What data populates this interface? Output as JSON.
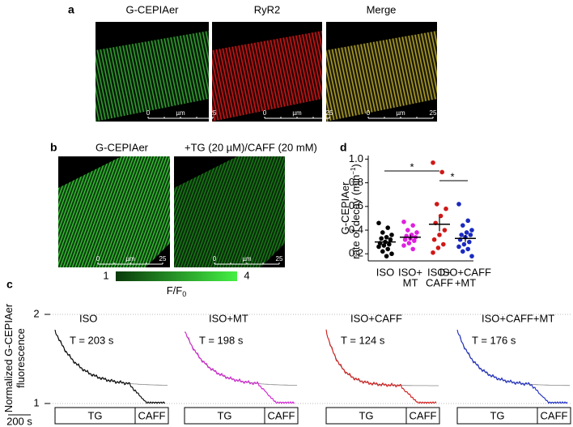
{
  "panel_a": {
    "letter": "a",
    "headers": [
      "G-CEPIAer",
      "RyR2",
      "Merge"
    ],
    "scale_bar": {
      "start": "0",
      "unit": "µm",
      "end": "25"
    }
  },
  "panel_b": {
    "letter": "b",
    "headers": [
      "G-CEPIAer",
      "+TG (20 µM)/CAFF (20 mM)"
    ],
    "scale_bar": {
      "start": "0",
      "unit": "µm",
      "end": "25"
    },
    "colorbar": {
      "min": 1,
      "max": 4,
      "label": "F/F",
      "label_sub": "0"
    }
  },
  "panel_d": {
    "letter": "d",
    "ylabel": [
      "G-CEPIAer",
      "rate of decay (min",
      "−1",
      ")"
    ],
    "ylim": [
      0.14,
      1.03
    ],
    "yticks": [
      {
        "value": 1,
        "label": "1.0"
      },
      0.8,
      0.6,
      0.4,
      0.2
    ],
    "significance": [
      "*",
      "*"
    ],
    "groups": [
      {
        "label": [
          "ISO"
        ],
        "color": "#000000",
        "values": [
          0.46,
          0.42,
          0.38,
          0.36,
          0.34,
          0.33,
          0.32,
          0.3,
          0.29,
          0.28,
          0.27,
          0.26,
          0.24,
          0.22,
          0.2,
          0.18
        ],
        "mean": 0.3,
        "sem": 0.02
      },
      {
        "label": [
          "ISO+",
          "MT"
        ],
        "color": "#e020e0",
        "values": [
          0.47,
          0.44,
          0.4,
          0.38,
          0.36,
          0.35,
          0.34,
          0.33,
          0.32,
          0.31,
          0.29,
          0.27,
          0.24
        ],
        "mean": 0.34,
        "sem": 0.02
      },
      {
        "label": [
          "ISO+",
          "CAFF"
        ],
        "color": "#d01818",
        "values": [
          0.97,
          0.89,
          0.62,
          0.58,
          0.52,
          0.46,
          0.4,
          0.36,
          0.32,
          0.28,
          0.25,
          0.21
        ],
        "mean": 0.45,
        "sem": 0.06
      },
      {
        "label": [
          "ISO+CAFF",
          "+MT"
        ],
        "color": "#1a2ac0",
        "values": [
          0.62,
          0.48,
          0.44,
          0.4,
          0.38,
          0.36,
          0.36,
          0.34,
          0.32,
          0.3,
          0.28,
          0.26,
          0.24,
          0.22,
          0.18
        ],
        "mean": 0.33,
        "sem": 0.03
      }
    ]
  },
  "panel_c": {
    "letter": "c",
    "ylabel": [
      "Normalized G-CEPIAer",
      "fluorescence"
    ],
    "yticks": [
      2,
      1
    ],
    "time_scale": {
      "value": 200,
      "label": "200 s"
    },
    "box_labels": [
      "TG",
      "CAFF"
    ],
    "traces": [
      {
        "title": "ISO",
        "tau": 203,
        "tau_label": "T = 203 s",
        "color": "#000000"
      },
      {
        "title": "ISO+MT",
        "tau": 198,
        "tau_label": "T = 198 s",
        "color": "#d020d0"
      },
      {
        "title": "ISO+CAFF",
        "tau": 124,
        "tau_label": "T = 124 s",
        "color": "#d01818"
      },
      {
        "title": "ISO+CAFF+MT",
        "tau": 176,
        "tau_label": "T = 176 s",
        "color": "#1a2ac0"
      }
    ]
  }
}
